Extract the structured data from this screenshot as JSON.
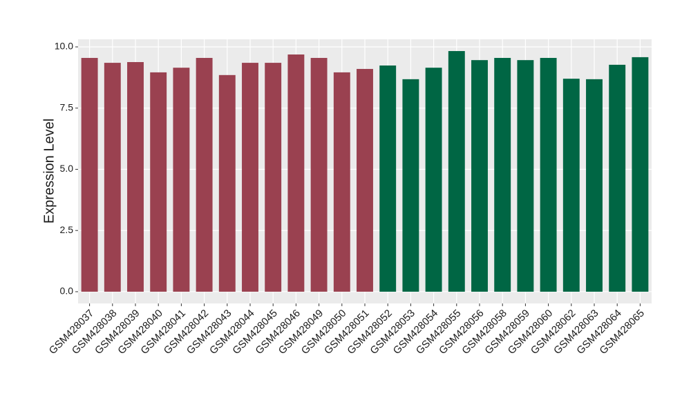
{
  "chart_data": {
    "type": "bar",
    "y_label": "Expression Level",
    "categories": [
      "GSM428037",
      "GSM428038",
      "GSM428039",
      "GSM428040",
      "GSM428041",
      "GSM428042",
      "GSM428043",
      "GSM428044",
      "GSM428045",
      "GSM428046",
      "GSM428049",
      "GSM428050",
      "GSM428051",
      "GSM428052",
      "GSM428053",
      "GSM428054",
      "GSM428055",
      "GSM428056",
      "GSM428058",
      "GSM428059",
      "GSM428060",
      "GSM428062",
      "GSM428063",
      "GSM428064",
      "GSM428065"
    ],
    "values": [
      9.55,
      9.35,
      9.38,
      8.96,
      9.15,
      9.55,
      8.85,
      9.35,
      9.35,
      9.69,
      9.55,
      8.96,
      9.1,
      9.24,
      8.68,
      9.15,
      9.83,
      9.46,
      9.55,
      9.46,
      9.55,
      8.7,
      8.68,
      9.27,
      9.58
    ],
    "colors": [
      "#9a4150",
      "#9a4150",
      "#9a4150",
      "#9a4150",
      "#9a4150",
      "#9a4150",
      "#9a4150",
      "#9a4150",
      "#9a4150",
      "#9a4150",
      "#9a4150",
      "#9a4150",
      "#9a4150",
      "#006644",
      "#006644",
      "#006644",
      "#006644",
      "#006644",
      "#006644",
      "#006644",
      "#006644",
      "#006644",
      "#006644",
      "#006644",
      "#006644"
    ],
    "ylim": [
      -0.48,
      10.31
    ],
    "yticks": [
      {
        "value": 0,
        "label": "0.0"
      },
      {
        "value": 2.5,
        "label": "2.5"
      },
      {
        "value": 5,
        "label": "5.0"
      },
      {
        "value": 7.5,
        "label": "7.5"
      },
      {
        "value": 10,
        "label": "10.0"
      }
    ],
    "grid": true
  }
}
